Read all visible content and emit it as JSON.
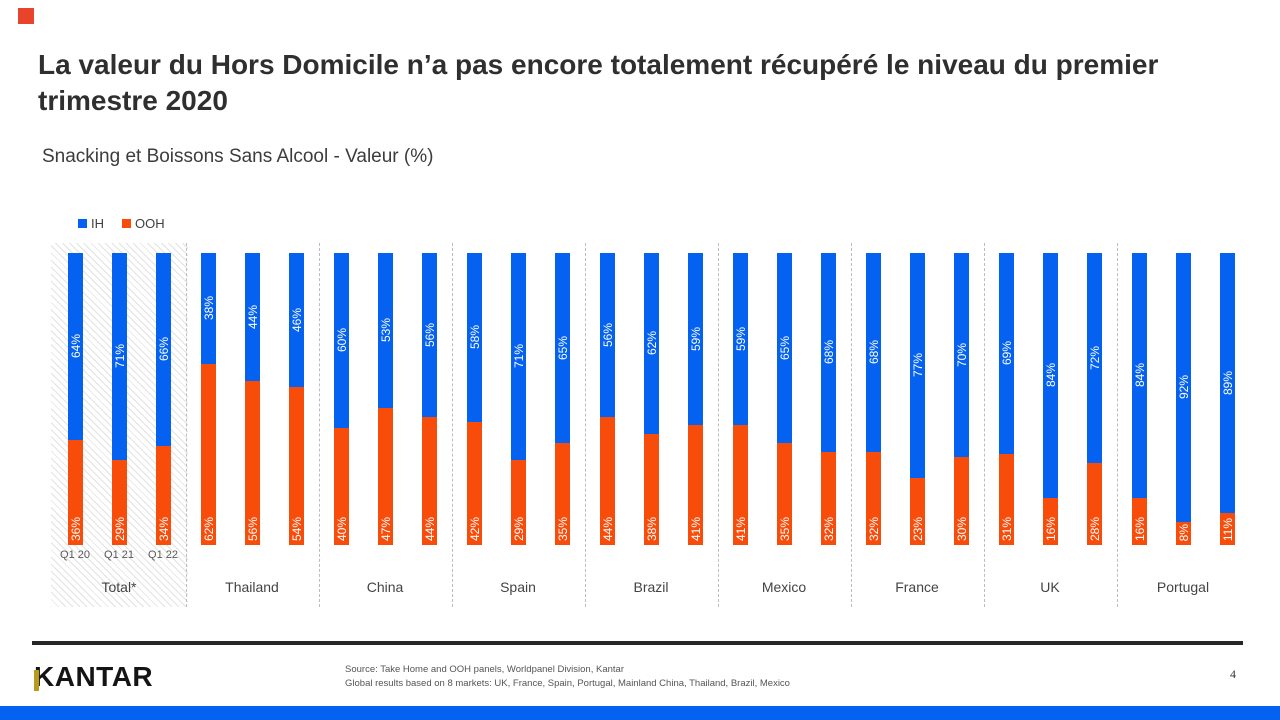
{
  "slide": {
    "title": "La valeur du Hors Domicile n’a pas encore totalement récupéré le niveau du premier trimestre 2020",
    "subtitle": "Snacking et Boissons Sans Alcool - Valeur (%)",
    "logo_text": "KANTAR",
    "source_line1": "Source: Take Home and OOH  panels, Worldpanel Division,  Kantar",
    "source_line2": "Global results based on 8 markets: UK,  France, Spain, Portugal,  Mainland  China,  Thailand,  Brazil,  Mexico",
    "page_number": "4"
  },
  "legend": [
    {
      "label": "IH",
      "color": "#0562f0"
    },
    {
      "label": "OOH",
      "color": "#f84c0b"
    }
  ],
  "colors": {
    "ih_blue": "#0562f0",
    "ooh_orange": "#f84c0b",
    "footer_bar_blue": "#0562f0",
    "accent_square_red": "#e8442c",
    "kantar_logo_accent": "#b89a1c"
  },
  "chart_data": {
    "type": "bar",
    "stacked": true,
    "unit": "%",
    "title": "Snacking et Boissons Sans Alcool - Valeur (%)",
    "legend_position": "top-left",
    "ylim": [
      0,
      100
    ],
    "grid": false,
    "quarter_labels": [
      "Q1 20",
      "Q1 21",
      "Q1 22"
    ],
    "series_colors": {
      "IH": "#0562f0",
      "OOH": "#f84c0b"
    },
    "groups": [
      {
        "name": "Total*",
        "highlight": true,
        "ih": [
          64,
          71,
          66
        ],
        "ooh": [
          36,
          29,
          34
        ]
      },
      {
        "name": "Thailand",
        "highlight": false,
        "ih": [
          38,
          44,
          46
        ],
        "ooh": [
          62,
          56,
          54
        ]
      },
      {
        "name": "China",
        "highlight": false,
        "ih": [
          60,
          53,
          56
        ],
        "ooh": [
          40,
          47,
          44
        ]
      },
      {
        "name": "Spain",
        "highlight": false,
        "ih": [
          58,
          71,
          65
        ],
        "ooh": [
          42,
          29,
          35
        ]
      },
      {
        "name": "Brazil",
        "highlight": false,
        "ih": [
          56,
          62,
          59
        ],
        "ooh": [
          44,
          38,
          41
        ]
      },
      {
        "name": "Mexico",
        "highlight": false,
        "ih": [
          59,
          65,
          68
        ],
        "ooh": [
          41,
          35,
          32
        ]
      },
      {
        "name": "France",
        "highlight": false,
        "ih": [
          68,
          77,
          70
        ],
        "ooh": [
          32,
          23,
          30
        ]
      },
      {
        "name": "UK",
        "highlight": false,
        "ih": [
          69,
          84,
          72
        ],
        "ooh": [
          31,
          16,
          28
        ]
      },
      {
        "name": "Portugal",
        "highlight": false,
        "ih": [
          84,
          92,
          89
        ],
        "ooh": [
          16,
          8,
          11
        ]
      }
    ]
  }
}
